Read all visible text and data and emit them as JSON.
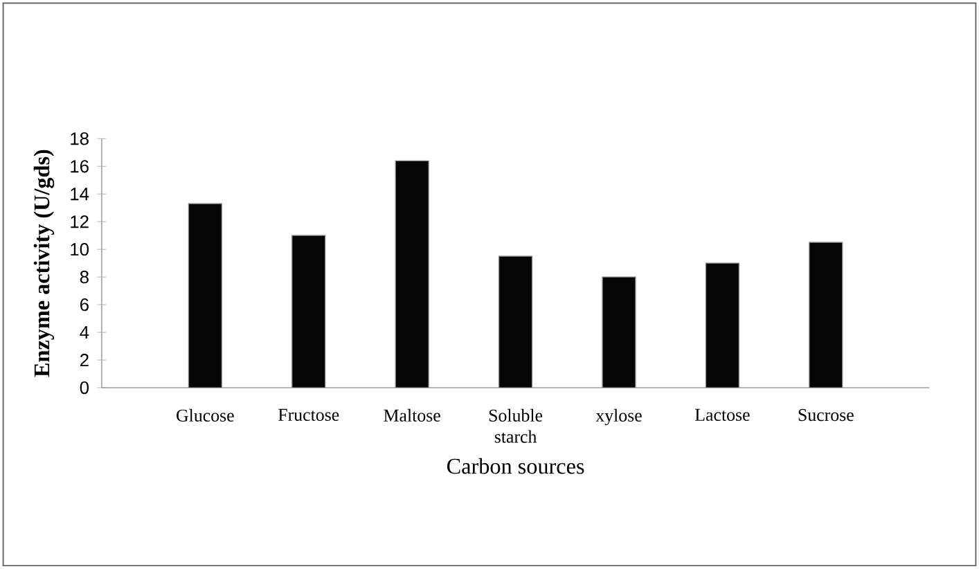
{
  "chart_data": {
    "type": "bar",
    "xlabel": "Carbon sources",
    "ylabel": "Enzyme activity (U/gds)",
    "categories": [
      "Glucose",
      "Fructose",
      "Maltose",
      "Soluble starch",
      "xylose",
      "Lactose",
      "Sucrose"
    ],
    "values": [
      13.3,
      11.0,
      16.4,
      9.5,
      8.0,
      9.0,
      10.5
    ],
    "color": "#050505",
    "ylim": [
      0,
      18
    ],
    "yticks": [
      0,
      2,
      4,
      6,
      8,
      10,
      12,
      14,
      16,
      18
    ],
    "grid": false
  }
}
